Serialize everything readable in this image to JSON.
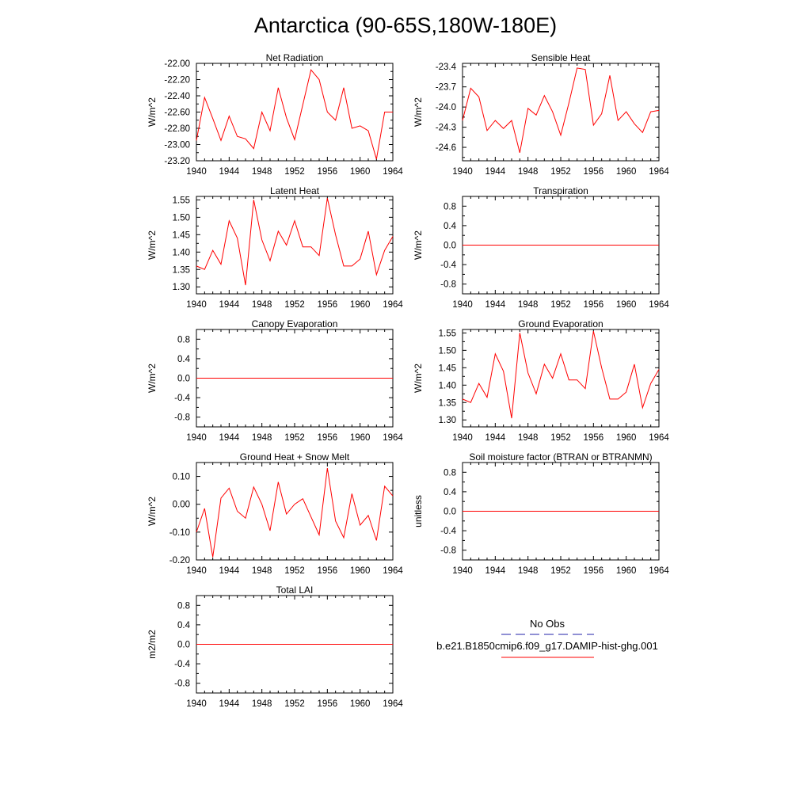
{
  "title": "Antarctica (90-65S,180W-180E)",
  "legend": {
    "obs_label": "No Obs",
    "model_label": "b.e21.B1850cmip6.f09_g17.DAMIP-hist-ghg.001",
    "obs_color": "#2222aa",
    "model_color": "#ff0000"
  },
  "chart_data": [
    {
      "type": "line",
      "title": "Net Radiation",
      "ylabel": "W/m^2",
      "xlim": [
        1940,
        1964
      ],
      "ylim": [
        -23.2,
        -22.0
      ],
      "xticks": [
        1940,
        1944,
        1948,
        1952,
        1956,
        1960,
        1964
      ],
      "yticks": [
        "-22.00",
        "-22.20",
        "-22.40",
        "-22.60",
        "-22.80",
        "-23.00",
        "-23.20"
      ],
      "x": [
        1940,
        1941,
        1942,
        1943,
        1944,
        1945,
        1946,
        1947,
        1948,
        1949,
        1950,
        1951,
        1952,
        1953,
        1954,
        1955,
        1956,
        1957,
        1958,
        1959,
        1960,
        1961,
        1962,
        1963,
        1964
      ],
      "series": [
        {
          "values": [
            -22.95,
            -22.42,
            -22.68,
            -22.95,
            -22.65,
            -22.9,
            -22.93,
            -23.05,
            -22.6,
            -22.83,
            -22.3,
            -22.67,
            -22.94,
            -22.51,
            -22.08,
            -22.2,
            -22.6,
            -22.7,
            -22.3,
            -22.8,
            -22.77,
            -22.83,
            -23.18,
            -22.6,
            -22.6
          ],
          "color": "#ff0000"
        }
      ]
    },
    {
      "type": "line",
      "title": "Sensible Heat",
      "ylabel": "W/m^2",
      "xlim": [
        1940,
        1964
      ],
      "ylim": [
        -24.8,
        -23.35
      ],
      "xticks": [
        1940,
        1944,
        1948,
        1952,
        1956,
        1960,
        1964
      ],
      "yticks": [
        "-23.4",
        "-23.7",
        "-24.0",
        "-24.3",
        "-24.6"
      ],
      "x": [
        1940,
        1941,
        1942,
        1943,
        1944,
        1945,
        1946,
        1947,
        1948,
        1949,
        1950,
        1951,
        1952,
        1953,
        1954,
        1955,
        1956,
        1957,
        1958,
        1959,
        1960,
        1961,
        1962,
        1963,
        1964
      ],
      "series": [
        {
          "values": [
            -24.2,
            -23.72,
            -23.85,
            -24.35,
            -24.2,
            -24.32,
            -24.2,
            -24.68,
            -24.02,
            -24.12,
            -23.83,
            -24.07,
            -24.42,
            -23.94,
            -23.42,
            -23.44,
            -24.27,
            -24.1,
            -23.53,
            -24.2,
            -24.07,
            -24.25,
            -24.38,
            -24.07,
            -24.05
          ],
          "color": "#ff0000"
        }
      ]
    },
    {
      "type": "line",
      "title": "Latent Heat",
      "ylabel": "W/m^2",
      "xlim": [
        1940,
        1964
      ],
      "ylim": [
        1.28,
        1.56
      ],
      "xticks": [
        1940,
        1944,
        1948,
        1952,
        1956,
        1960,
        1964
      ],
      "yticks": [
        "1.55",
        "1.50",
        "1.45",
        "1.40",
        "1.35",
        "1.30"
      ],
      "x": [
        1940,
        1941,
        1942,
        1943,
        1944,
        1945,
        1946,
        1947,
        1948,
        1949,
        1950,
        1951,
        1952,
        1953,
        1954,
        1955,
        1956,
        1957,
        1958,
        1959,
        1960,
        1961,
        1962,
        1963,
        1964
      ],
      "series": [
        {
          "values": [
            1.36,
            1.35,
            1.405,
            1.365,
            1.49,
            1.44,
            1.305,
            1.55,
            1.435,
            1.375,
            1.46,
            1.42,
            1.49,
            1.415,
            1.415,
            1.39,
            1.555,
            1.45,
            1.36,
            1.36,
            1.38,
            1.46,
            1.335,
            1.405,
            1.445
          ],
          "color": "#ff0000"
        }
      ]
    },
    {
      "type": "line",
      "title": "Transpiration",
      "ylabel": "W/m^2",
      "xlim": [
        1940,
        1964
      ],
      "ylim": [
        -1.0,
        1.0
      ],
      "xticks": [
        1940,
        1944,
        1948,
        1952,
        1956,
        1960,
        1964
      ],
      "yticks": [
        "0.8",
        "0.4",
        "0.0",
        "-0.4",
        "-0.8"
      ],
      "x": [
        1940,
        1964
      ],
      "series": [
        {
          "values": [
            0.0,
            0.0
          ],
          "color": "#ff0000"
        }
      ]
    },
    {
      "type": "line",
      "title": "Canopy Evaporation",
      "ylabel": "W/m^2",
      "xlim": [
        1940,
        1964
      ],
      "ylim": [
        -1.0,
        1.0
      ],
      "xticks": [
        1940,
        1944,
        1948,
        1952,
        1956,
        1960,
        1964
      ],
      "yticks": [
        "0.8",
        "0.4",
        "0.0",
        "-0.4",
        "-0.8"
      ],
      "x": [
        1940,
        1964
      ],
      "series": [
        {
          "values": [
            0.0,
            0.0
          ],
          "color": "#ff0000"
        }
      ]
    },
    {
      "type": "line",
      "title": "Ground Evaporation",
      "ylabel": "W/m^2",
      "xlim": [
        1940,
        1964
      ],
      "ylim": [
        1.28,
        1.56
      ],
      "xticks": [
        1940,
        1944,
        1948,
        1952,
        1956,
        1960,
        1964
      ],
      "yticks": [
        "1.55",
        "1.50",
        "1.45",
        "1.40",
        "1.35",
        "1.30"
      ],
      "x": [
        1940,
        1941,
        1942,
        1943,
        1944,
        1945,
        1946,
        1947,
        1948,
        1949,
        1950,
        1951,
        1952,
        1953,
        1954,
        1955,
        1956,
        1957,
        1958,
        1959,
        1960,
        1961,
        1962,
        1963,
        1964
      ],
      "series": [
        {
          "values": [
            1.36,
            1.35,
            1.405,
            1.365,
            1.49,
            1.44,
            1.305,
            1.55,
            1.435,
            1.375,
            1.46,
            1.42,
            1.49,
            1.415,
            1.415,
            1.39,
            1.555,
            1.45,
            1.36,
            1.36,
            1.38,
            1.46,
            1.335,
            1.405,
            1.445
          ],
          "color": "#ff0000"
        }
      ]
    },
    {
      "type": "line",
      "title": "Ground Heat + Snow Melt",
      "ylabel": "W/m^2",
      "xlim": [
        1940,
        1964
      ],
      "ylim": [
        -0.2,
        0.15
      ],
      "xticks": [
        1940,
        1944,
        1948,
        1952,
        1956,
        1960,
        1964
      ],
      "yticks": [
        "0.10",
        "0.00",
        "-0.10",
        "-0.20"
      ],
      "x": [
        1940,
        1941,
        1942,
        1943,
        1944,
        1945,
        1946,
        1947,
        1948,
        1949,
        1950,
        1951,
        1952,
        1953,
        1954,
        1955,
        1956,
        1957,
        1958,
        1959,
        1960,
        1961,
        1962,
        1963,
        1964
      ],
      "series": [
        {
          "values": [
            -0.1,
            -0.015,
            -0.19,
            0.022,
            0.058,
            -0.025,
            -0.05,
            0.062,
            0.0,
            -0.095,
            0.08,
            -0.035,
            0.0,
            0.02,
            -0.045,
            -0.11,
            0.13,
            -0.06,
            -0.12,
            0.038,
            -0.075,
            -0.04,
            -0.13,
            0.065,
            0.03
          ],
          "color": "#ff0000"
        }
      ]
    },
    {
      "type": "line",
      "title": "Soil moisture factor (BTRAN or BTRANMN)",
      "ylabel": "unitless",
      "xlim": [
        1940,
        1964
      ],
      "ylim": [
        -1.0,
        1.0
      ],
      "xticks": [
        1940,
        1944,
        1948,
        1952,
        1956,
        1960,
        1964
      ],
      "yticks": [
        "0.8",
        "0.4",
        "0.0",
        "-0.4",
        "-0.8"
      ],
      "x": [
        1940,
        1964
      ],
      "series": [
        {
          "values": [
            0.0,
            0.0
          ],
          "color": "#ff0000"
        }
      ]
    },
    {
      "type": "line",
      "title": "Total LAI",
      "ylabel": "m2/m2",
      "xlim": [
        1940,
        1964
      ],
      "ylim": [
        -1.0,
        1.0
      ],
      "xticks": [
        1940,
        1944,
        1948,
        1952,
        1956,
        1960,
        1964
      ],
      "yticks": [
        "0.8",
        "0.4",
        "0.0",
        "-0.4",
        "-0.8"
      ],
      "x": [
        1940,
        1964
      ],
      "series": [
        {
          "values": [
            0.0,
            0.0
          ],
          "color": "#ff0000"
        }
      ]
    }
  ]
}
